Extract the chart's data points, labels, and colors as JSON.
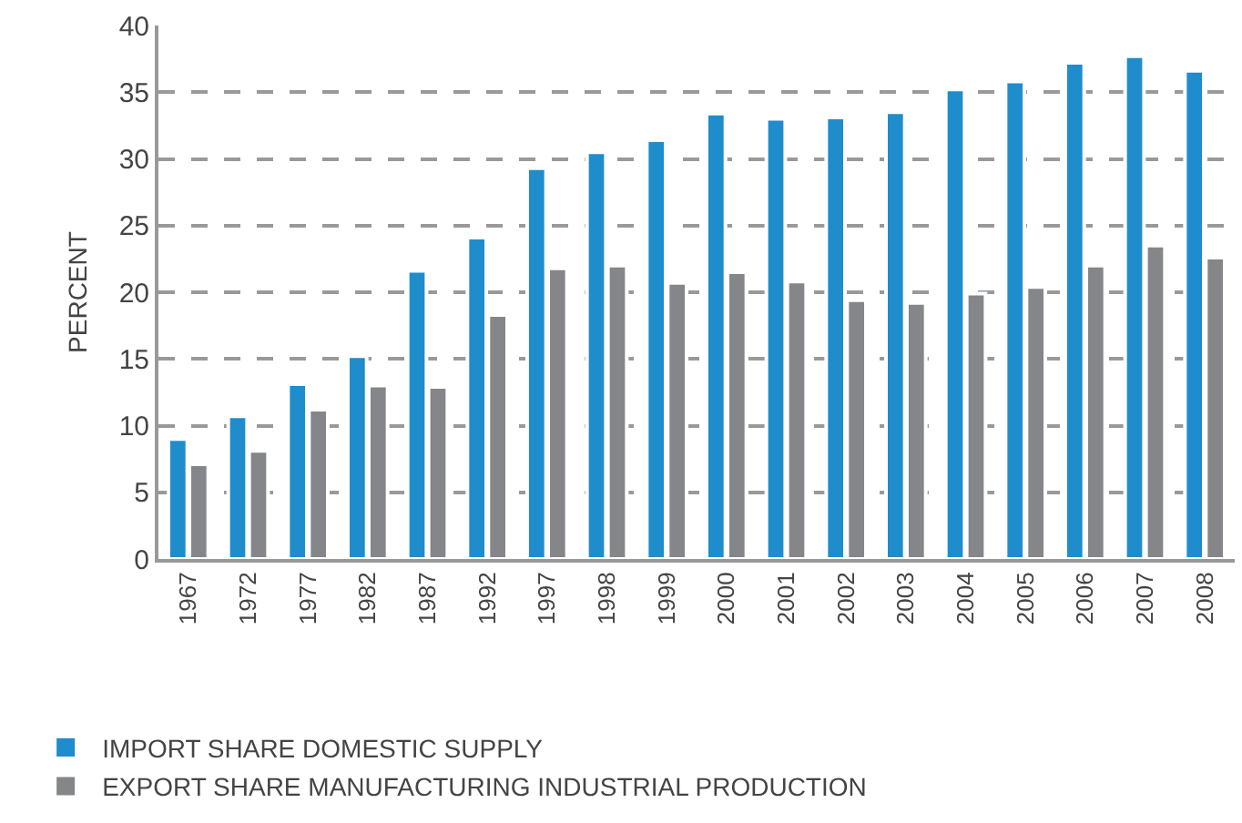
{
  "chart_data": {
    "type": "bar",
    "ylabel": "PERCENT",
    "categories": [
      "1967",
      "1972",
      "1977",
      "1982",
      "1987",
      "1992",
      "1997",
      "1998",
      "1999",
      "2000",
      "2001",
      "2002",
      "2003",
      "2004",
      "2005",
      "2006",
      "2007",
      "2008"
    ],
    "series": [
      {
        "name": "IMPORT SHARE DOMESTIC SUPPLY",
        "color": "#1f8ccc",
        "values": [
          9.0,
          10.7,
          13.1,
          15.2,
          21.6,
          24.1,
          29.3,
          30.5,
          31.4,
          33.4,
          33.0,
          33.1,
          33.5,
          35.2,
          35.8,
          37.2,
          37.7,
          36.6
        ]
      },
      {
        "name": "EXPORT SHARE MANUFACTURING INDUSTRIAL PRODUCTION",
        "color": "#858689",
        "values": [
          7.1,
          8.1,
          11.2,
          13.0,
          12.9,
          18.3,
          21.8,
          22.0,
          20.7,
          21.5,
          20.8,
          19.4,
          19.2,
          19.9,
          20.4,
          22.0,
          23.5,
          22.6
        ]
      }
    ],
    "ylim": [
      0,
      40
    ],
    "yticks": [
      0,
      5,
      10,
      15,
      20,
      25,
      30,
      35,
      40
    ],
    "grid": "y",
    "legend": "bottom"
  }
}
